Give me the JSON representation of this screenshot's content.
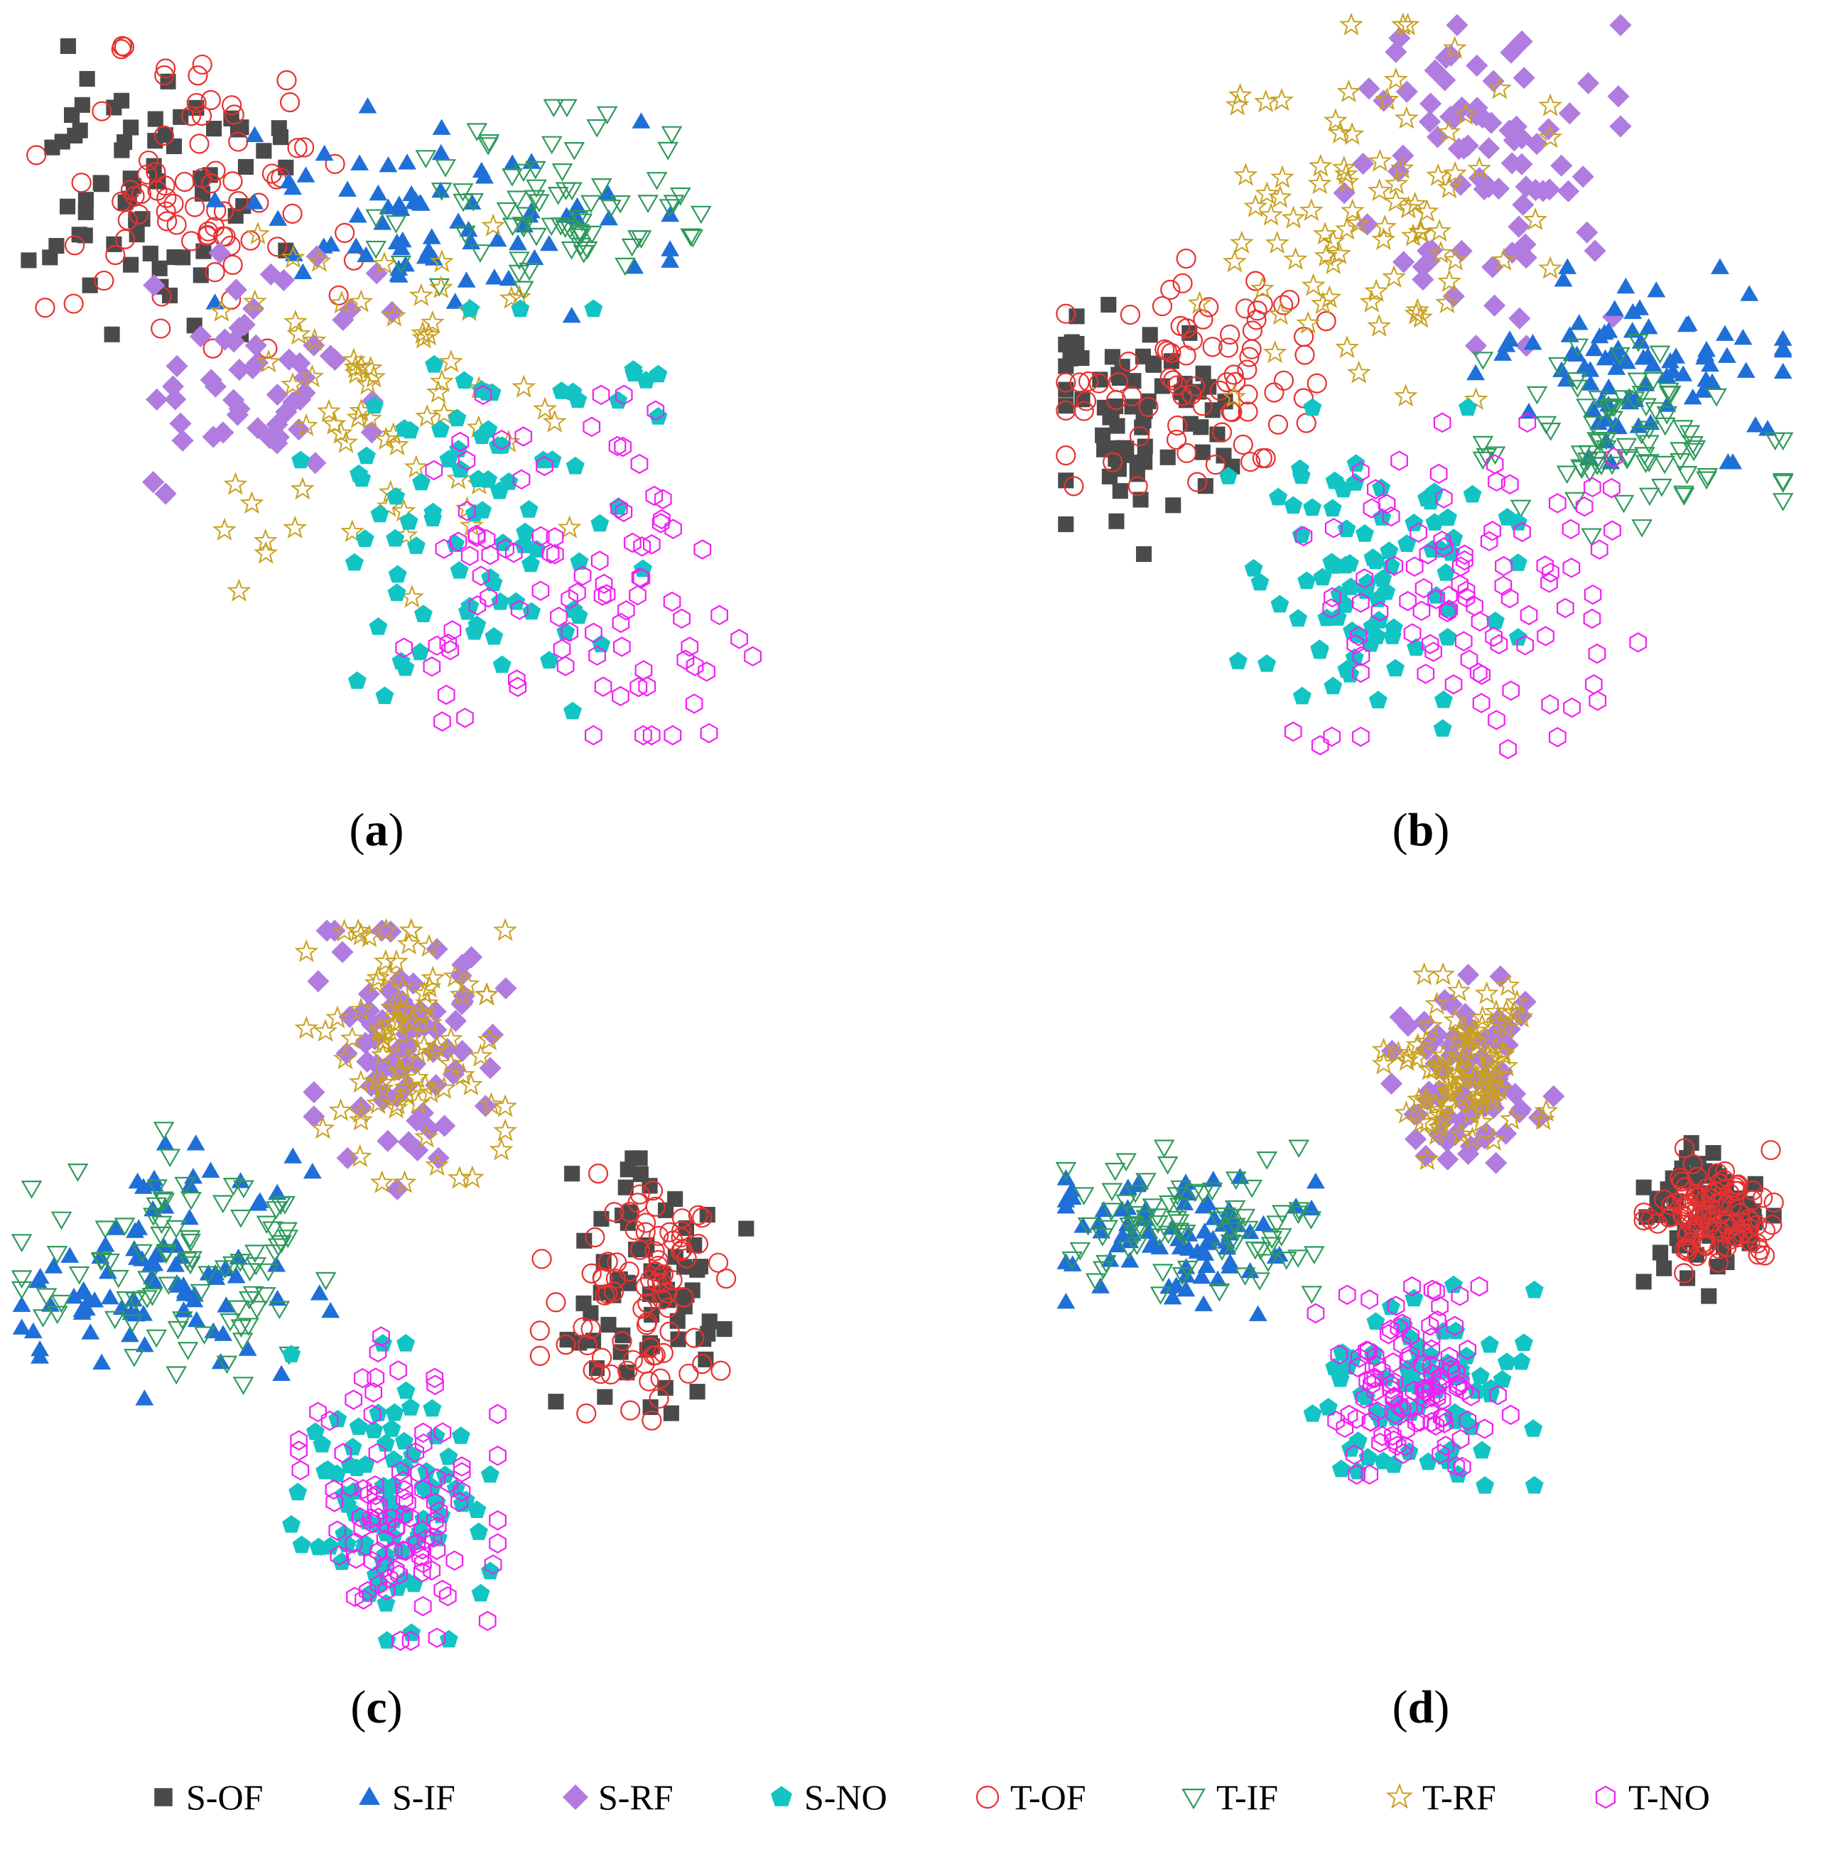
{
  "figure": {
    "panels": [
      {
        "id": "a",
        "label_open": "(",
        "label": "a",
        "label_close": ")"
      },
      {
        "id": "b",
        "label_open": "(",
        "label": "b",
        "label_close": ")"
      },
      {
        "id": "c",
        "label_open": "(",
        "label": "c",
        "label_close": ")"
      },
      {
        "id": "d",
        "label_open": "(",
        "label": "d",
        "label_close": ")"
      }
    ]
  },
  "legend": [
    {
      "key": "S-OF",
      "label": "S-OF",
      "marker": "filled-square",
      "color": "#4a4a4a"
    },
    {
      "key": "S-IF",
      "label": "S-IF",
      "marker": "filled-triangle-up",
      "color": "#1f6fd8"
    },
    {
      "key": "S-RF",
      "label": "S-RF",
      "marker": "filled-diamond",
      "color": "#b07ce0"
    },
    {
      "key": "S-NO",
      "label": "S-NO",
      "marker": "filled-pentagon",
      "color": "#12c4c4"
    },
    {
      "key": "T-OF",
      "label": "T-OF",
      "marker": "open-circle",
      "color": "#e83030"
    },
    {
      "key": "T-IF",
      "label": "T-IF",
      "marker": "open-triangle-down",
      "color": "#2e9a5a"
    },
    {
      "key": "T-RF",
      "label": "T-RF",
      "marker": "open-star",
      "color": "#c8a020"
    },
    {
      "key": "T-NO",
      "label": "T-NO",
      "marker": "open-hexagon",
      "color": "#f21ff2"
    }
  ],
  "chart_data": [
    {
      "type": "scatter",
      "panel": "a",
      "xlim": [
        0,
        100
      ],
      "ylim": [
        0,
        100
      ],
      "grid": false,
      "clusters": [
        {
          "series": "S-OF",
          "cx": 16,
          "cy": 80,
          "sx": 9,
          "sy": 10,
          "n": 70
        },
        {
          "series": "T-OF",
          "cx": 23,
          "cy": 78,
          "sx": 10,
          "sy": 10,
          "n": 80
        },
        {
          "series": "S-IF",
          "cx": 57,
          "cy": 75,
          "sx": 14,
          "sy": 7,
          "n": 75
        },
        {
          "series": "T-IF",
          "cx": 70,
          "cy": 75,
          "sx": 10,
          "sy": 7,
          "n": 75
        },
        {
          "series": "S-RF",
          "cx": 33,
          "cy": 52,
          "sx": 9,
          "sy": 8,
          "n": 55
        },
        {
          "series": "T-RF",
          "cx": 50,
          "cy": 47,
          "sx": 11,
          "sy": 12,
          "n": 75
        },
        {
          "series": "S-NO",
          "cx": 62,
          "cy": 33,
          "sx": 11,
          "sy": 13,
          "n": 90
        },
        {
          "series": "T-NO",
          "cx": 76,
          "cy": 23,
          "sx": 11,
          "sy": 12,
          "n": 95
        }
      ]
    },
    {
      "type": "scatter",
      "panel": "b",
      "xlim": [
        0,
        100
      ],
      "ylim": [
        0,
        100
      ],
      "grid": false,
      "clusters": [
        {
          "series": "S-OF",
          "cx": 11,
          "cy": 45,
          "sx": 7,
          "sy": 8,
          "n": 70
        },
        {
          "series": "T-OF",
          "cx": 19,
          "cy": 52,
          "sx": 9,
          "sy": 7,
          "n": 80
        },
        {
          "series": "S-RF",
          "cx": 57,
          "cy": 82,
          "sx": 9,
          "sy": 12,
          "n": 80
        },
        {
          "series": "T-RF",
          "cx": 43,
          "cy": 74,
          "sx": 11,
          "sy": 12,
          "n": 90
        },
        {
          "series": "S-IF",
          "cx": 79,
          "cy": 53,
          "sx": 10,
          "sy": 6,
          "n": 85
        },
        {
          "series": "T-IF",
          "cx": 80,
          "cy": 43,
          "sx": 10,
          "sy": 6,
          "n": 85
        },
        {
          "series": "S-NO",
          "cx": 43,
          "cy": 23,
          "sx": 9,
          "sy": 11,
          "n": 85
        },
        {
          "series": "T-NO",
          "cx": 55,
          "cy": 21,
          "sx": 11,
          "sy": 11,
          "n": 95
        }
      ]
    },
    {
      "type": "scatter",
      "panel": "c",
      "xlim": [
        0,
        100
      ],
      "ylim": [
        0,
        100
      ],
      "grid": false,
      "clusters": [
        {
          "series": "S-RF",
          "cx": 53,
          "cy": 83,
          "sx": 6,
          "sy": 9,
          "n": 80
        },
        {
          "series": "T-RF",
          "cx": 52,
          "cy": 84,
          "sx": 6,
          "sy": 9,
          "n": 90
        },
        {
          "series": "S-IF",
          "cx": 20,
          "cy": 52,
          "sx": 10,
          "sy": 8,
          "n": 90
        },
        {
          "series": "T-IF",
          "cx": 22,
          "cy": 54,
          "sx": 10,
          "sy": 8,
          "n": 90
        },
        {
          "series": "S-OF",
          "cx": 84,
          "cy": 50,
          "sx": 6,
          "sy": 8,
          "n": 70
        },
        {
          "series": "T-OF",
          "cx": 83,
          "cy": 49,
          "sx": 6,
          "sy": 8,
          "n": 85
        },
        {
          "series": "S-NO",
          "cx": 50,
          "cy": 20,
          "sx": 6,
          "sy": 10,
          "n": 90
        },
        {
          "series": "T-NO",
          "cx": 51,
          "cy": 21,
          "sx": 6,
          "sy": 10,
          "n": 100
        }
      ]
    },
    {
      "type": "scatter",
      "panel": "d",
      "xlim": [
        0,
        100
      ],
      "ylim": [
        0,
        100
      ],
      "grid": false,
      "clusters": [
        {
          "series": "S-RF",
          "cx": 56,
          "cy": 82,
          "sx": 5,
          "sy": 7,
          "n": 80
        },
        {
          "series": "T-RF",
          "cx": 55,
          "cy": 82,
          "sx": 5,
          "sy": 7,
          "n": 100
        },
        {
          "series": "S-IF",
          "cx": 15,
          "cy": 55,
          "sx": 9,
          "sy": 6,
          "n": 80
        },
        {
          "series": "T-IF",
          "cx": 17,
          "cy": 56,
          "sx": 8,
          "sy": 6,
          "n": 80
        },
        {
          "series": "S-OF",
          "cx": 88,
          "cy": 57,
          "sx": 4,
          "sy": 6,
          "n": 80
        },
        {
          "series": "T-OF",
          "cx": 88,
          "cy": 58,
          "sx": 4,
          "sy": 5,
          "n": 100
        },
        {
          "series": "S-NO",
          "cx": 49,
          "cy": 29,
          "sx": 7,
          "sy": 8,
          "n": 80
        },
        {
          "series": "T-NO",
          "cx": 48,
          "cy": 31,
          "sx": 6,
          "sy": 7,
          "n": 110
        }
      ]
    }
  ]
}
